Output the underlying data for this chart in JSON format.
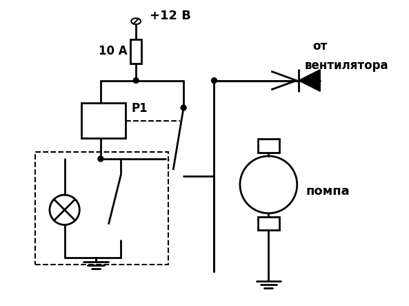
{
  "bg_color": "#ffffff",
  "line_color": "#000000",
  "line_width": 2.0,
  "text_12v": "+12 В",
  "text_10a": "10 А",
  "text_r1": "P1",
  "text_pompa": "помпа",
  "text_ot": "от",
  "text_ventilyatora": "вентилятора",
  "figsize": [
    5.93,
    4.43
  ],
  "dpi": 100
}
